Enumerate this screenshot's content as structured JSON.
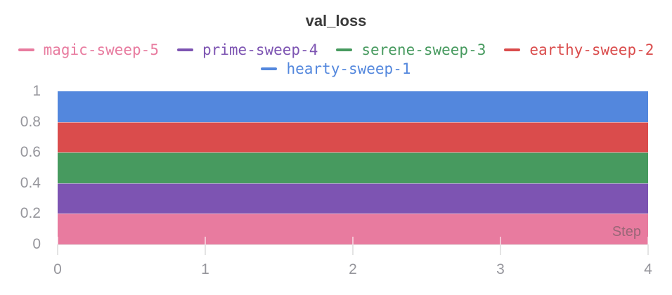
{
  "chart_data": {
    "type": "area",
    "title": "val_loss",
    "xlabel": "Step",
    "ylabel": "",
    "x": [
      0,
      1,
      2,
      3,
      4
    ],
    "xlim": [
      0,
      4
    ],
    "ylim": [
      0,
      1
    ],
    "xtick_labels": [
      "0",
      "1",
      "2",
      "3",
      "4"
    ],
    "ytick_labels": [
      "0",
      "0.2",
      "0.4",
      "0.6",
      "0.8",
      "1"
    ],
    "grid": false,
    "stacked": true,
    "legend_position": "top",
    "series": [
      {
        "name": "hearty-sweep-1",
        "color": "#5387DD",
        "band": [
          0.8,
          1.0
        ],
        "values": [
          0.2,
          0.2,
          0.2,
          0.2,
          0.2
        ]
      },
      {
        "name": "earthy-sweep-2",
        "color": "#DA4C4C",
        "band": [
          0.6,
          0.8
        ],
        "values": [
          0.2,
          0.2,
          0.2,
          0.2,
          0.2
        ]
      },
      {
        "name": "serene-sweep-3",
        "color": "#479A5F",
        "band": [
          0.4,
          0.6
        ],
        "values": [
          0.2,
          0.2,
          0.2,
          0.2,
          0.2
        ]
      },
      {
        "name": "prime-sweep-4",
        "color": "#7D54B2",
        "band": [
          0.2,
          0.4
        ],
        "values": [
          0.2,
          0.2,
          0.2,
          0.2,
          0.2
        ]
      },
      {
        "name": "magic-sweep-5",
        "color": "#E87B9F",
        "band": [
          0.0,
          0.2
        ],
        "values": [
          0.2,
          0.2,
          0.2,
          0.2,
          0.2
        ]
      }
    ]
  },
  "legend": {
    "rows": [
      [
        {
          "label": "magic-sweep-5",
          "color": "#E87B9F"
        },
        {
          "label": "prime-sweep-4",
          "color": "#7D54B2"
        },
        {
          "label": "serene-sweep-3",
          "color": "#479A5F"
        },
        {
          "label": "earthy-sweep-2",
          "color": "#DA4C4C"
        }
      ],
      [
        {
          "label": "hearty-sweep-1",
          "color": "#5387DD"
        }
      ]
    ]
  },
  "axis": {
    "step_label": "Step",
    "tick_label_color": "#96969c",
    "title_color": "#3a3a3a"
  }
}
